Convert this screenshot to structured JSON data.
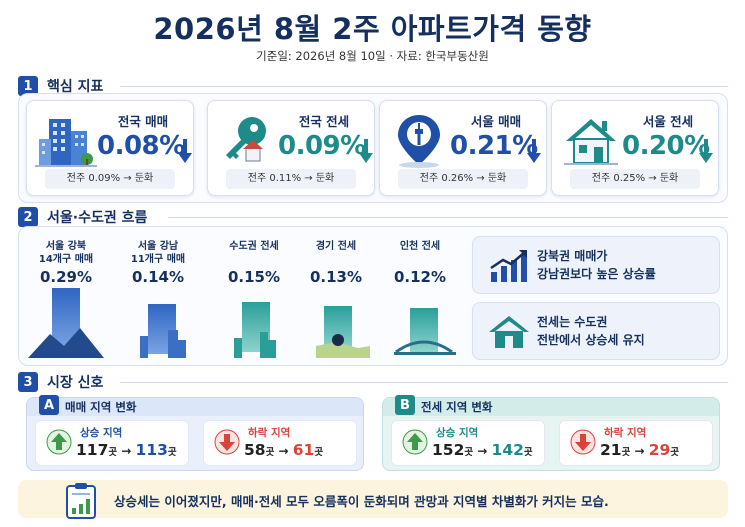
{
  "header": {
    "title": "2026년 8월 2주 아파트가격 동향",
    "subtitle": "기준일: 2026년 8월 10일 · 자료: 한국부동산원"
  },
  "sections": [
    {
      "num": "1",
      "title": "핵심 지표"
    },
    {
      "num": "2",
      "title": "서울·수도권 흐름"
    },
    {
      "num": "3",
      "title": "시장 신호"
    }
  ],
  "cards": [
    {
      "label": "전국 매매",
      "value": "0.08%",
      "prev": "전주 0.09% → 둔화",
      "color": "#1f4fa6",
      "icon": "buildings-icon"
    },
    {
      "label": "전국 전세",
      "value": "0.09%",
      "prev": "전주 0.11% → 둔화",
      "color": "#1f8a8a",
      "icon": "key-icon"
    },
    {
      "label": "서울 매매",
      "value": "0.21%",
      "prev": "전주 0.26% → 둔화",
      "color": "#1f4fa6",
      "icon": "seoul-tower-icon"
    },
    {
      "label": "서울 전세",
      "value": "0.20%",
      "prev": "전주 0.25% → 둔화",
      "color": "#1f8a8a",
      "icon": "house-icon"
    }
  ],
  "flow": [
    {
      "label1": "서울 강북",
      "label2": "14개구 매매",
      "value": "0.29%",
      "level": 0.29
    },
    {
      "label1": "서울 강남",
      "label2": "11개구 매매",
      "value": "0.14%",
      "level": 0.14
    },
    {
      "label1": "수도권 전세",
      "label2": "",
      "value": "0.15%",
      "level": 0.15
    },
    {
      "label1": "경기 전세",
      "label2": "",
      "value": "0.13%",
      "level": 0.13
    },
    {
      "label1": "인천 전세",
      "label2": "",
      "value": "0.12%",
      "level": 0.12
    }
  ],
  "insights": [
    {
      "line1": "강북권 매매가",
      "line2": "강남권보다 높은 상승률",
      "icon": "rising-chart-icon"
    },
    {
      "line1": "전세는 수도권",
      "line2": "전반에서 상승세 유지",
      "icon": "house-icon"
    }
  ],
  "signals": [
    {
      "badge": "A",
      "title": "매매 지역 변화",
      "color": "#1f4fa6",
      "up": {
        "label": "상승 지역",
        "from": "117",
        "to": "113",
        "unit": "곳"
      },
      "down": {
        "label": "하락 지역",
        "from": "58",
        "to": "61",
        "unit": "곳"
      }
    },
    {
      "badge": "B",
      "title": "전세 지역 변화",
      "color": "#1f8a8a",
      "up": {
        "label": "상승 지역",
        "from": "152",
        "to": "142",
        "unit": "곳"
      },
      "down": {
        "label": "하락 지역",
        "from": "21",
        "to": "29",
        "unit": "곳"
      }
    }
  ],
  "arrow_symbol": "→",
  "summary": "상승세는 이어졌지만, 매매·전세 모두 오름폭이 둔화되며 관망과 지역별 차별화가 커지는 모습."
}
